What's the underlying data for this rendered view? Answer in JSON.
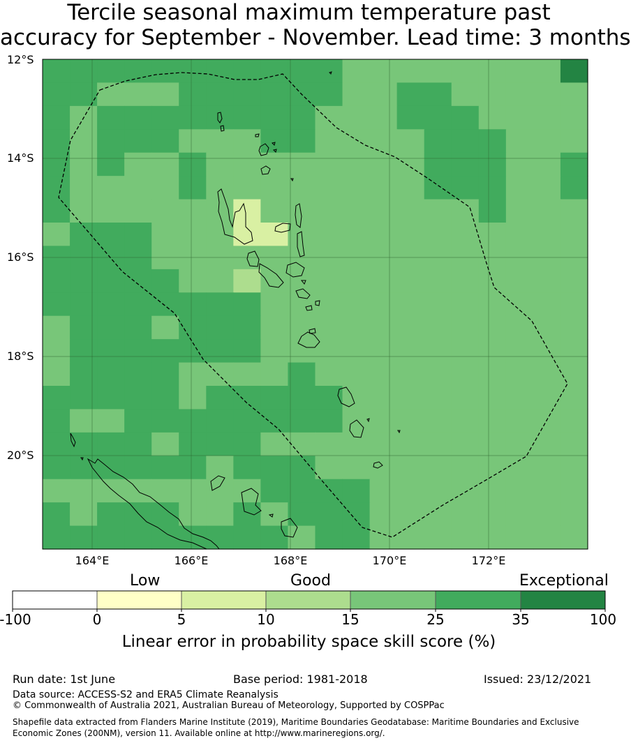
{
  "title": {
    "line1": "Tercile seasonal maximum temperature past",
    "line2": "accuracy for September - November. Lead time: 3 months"
  },
  "map": {
    "lat_labels": [
      "12°S",
      "14°S",
      "16°S",
      "18°S",
      "20°S"
    ],
    "lon_labels": [
      "164°E",
      "166°E",
      "168°E",
      "170°E",
      "172°E"
    ],
    "boundary": "dashed EEZ outline",
    "colors": {
      "c1": "#ffffc7",
      "c2": "#d9f0a3",
      "c3": "#addd8e",
      "c4": "#78c679",
      "c5": "#41ab5d",
      "c6": "#238443"
    },
    "grid_rows": [
      "55555555555444444446",
      "55444555555445544444",
      "54555555554445554444",
      "54555444554444555444",
      "54544544444444555445",
      "54444544444444555445",
      "54444442444444445444",
      "45554442244444444444",
      "55554444444444444444",
      "55555443444444444444",
      "55555555444444444444",
      "45554555444444444444",
      "45555555444444444444",
      "45555444454444444444",
      "55555455555444444444",
      "54455555555444444444",
      "55554555444444444444",
      "55555545554444444444",
      "44444444555544444444",
      "54555445455544444444",
      "55555555545544444444"
    ]
  },
  "colorbar": {
    "category_labels": [
      "Low",
      "Good",
      "Exceptional"
    ],
    "tick_labels": [
      "-100",
      "0",
      "5",
      "10",
      "15",
      "25",
      "35",
      "100"
    ],
    "xlabel": "Linear error in probability space skill score (%)"
  },
  "footer": {
    "run_date": "Run date: 1st June",
    "base_period": "Base period: 1981-2018",
    "issued": "Issued: 23/12/2021",
    "data_source": "Data source: ACCESS-S2 and ERA5 Climate Reanalysis",
    "copyright": "© Commonwealth of Australia 2021, Australian Bureau of Meteorology, Supported by COSPPac",
    "shapefile_line1": "Shapefile data extracted from Flanders Marine Institute (2019), Maritime Boundaries Geodatabase: Maritime Boundaries and Exclusive",
    "shapefile_line2": "Economic Zones (200NM), version 11. Available online at http://www.marineregions.org/."
  }
}
